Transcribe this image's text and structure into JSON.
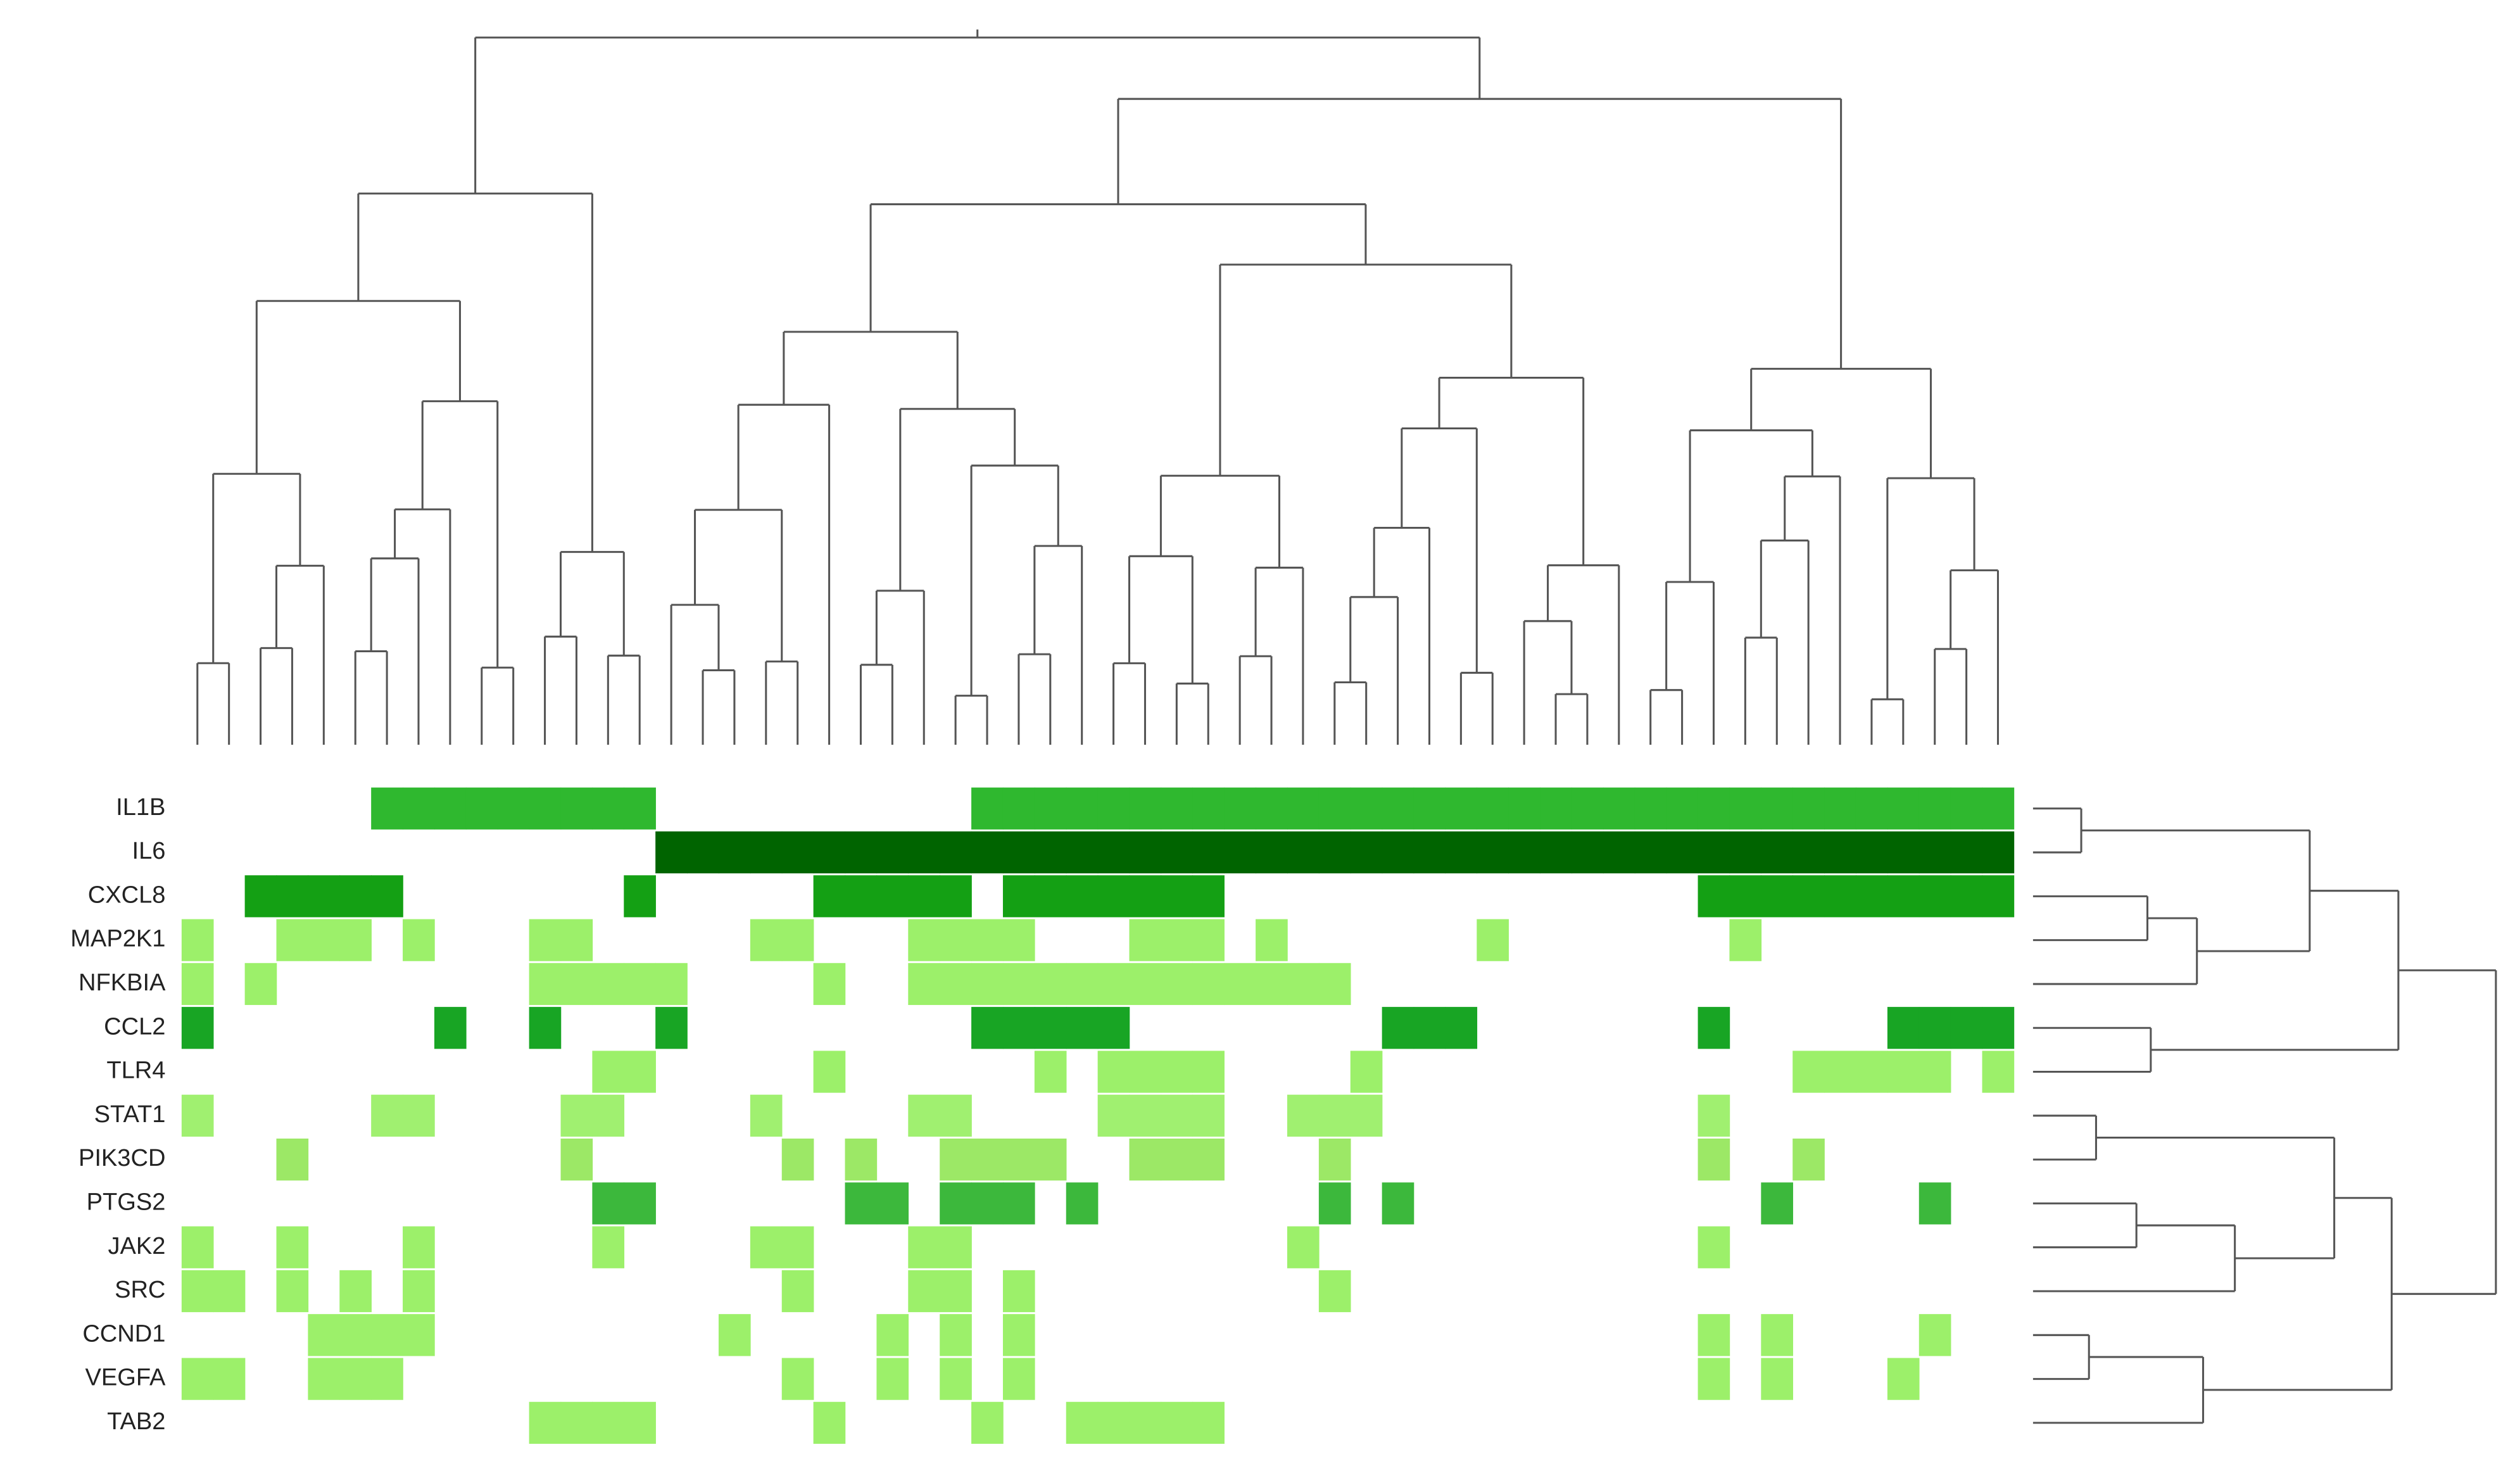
{
  "chart_data": {
    "type": "heatmap",
    "series": [
      {
        "name": "IL1B",
        "color": "#2fb82f",
        "values": [
          0,
          0,
          0,
          0,
          0,
          0,
          1,
          1,
          1,
          1,
          1,
          1,
          1,
          1,
          1,
          0,
          0,
          0,
          0,
          0,
          0,
          0,
          0,
          0,
          0,
          1,
          1,
          1,
          1,
          1,
          1,
          1,
          1,
          1,
          1,
          1,
          1,
          1,
          1,
          1,
          1,
          1,
          1,
          1,
          1,
          1,
          1,
          1,
          1,
          1,
          1,
          1,
          1,
          1,
          1,
          1,
          1,
          1
        ]
      },
      {
        "name": "IL6",
        "color": "#006400",
        "values": [
          0,
          0,
          0,
          0,
          0,
          0,
          0,
          0,
          0,
          0,
          0,
          0,
          0,
          0,
          0,
          1,
          1,
          1,
          1,
          1,
          1,
          1,
          1,
          1,
          1,
          1,
          1,
          1,
          1,
          1,
          1,
          1,
          1,
          1,
          1,
          1,
          1,
          1,
          1,
          1,
          1,
          1,
          1,
          1,
          1,
          1,
          1,
          1,
          1,
          1,
          1,
          1,
          1,
          1,
          1,
          1,
          1,
          1
        ]
      },
      {
        "name": "CXCL8",
        "color": "#14a014",
        "values": [
          0,
          0,
          1,
          1,
          1,
          1,
          1,
          0,
          0,
          0,
          0,
          0,
          0,
          0,
          1,
          0,
          0,
          0,
          0,
          0,
          1,
          1,
          1,
          1,
          1,
          0,
          1,
          1,
          1,
          1,
          1,
          1,
          1,
          0,
          0,
          0,
          0,
          0,
          0,
          0,
          0,
          0,
          0,
          0,
          0,
          0,
          0,
          0,
          1,
          1,
          1,
          1,
          1,
          1,
          1,
          1,
          1,
          1
        ]
      },
      {
        "name": "MAP2K1",
        "color": "#9cf06a",
        "values": [
          1,
          0,
          0,
          1,
          1,
          1,
          0,
          1,
          0,
          0,
          0,
          1,
          1,
          0,
          0,
          0,
          0,
          0,
          1,
          1,
          0,
          0,
          0,
          1,
          1,
          1,
          1,
          0,
          0,
          0,
          1,
          1,
          1,
          0,
          1,
          0,
          0,
          0,
          0,
          0,
          0,
          1,
          0,
          0,
          0,
          0,
          0,
          0,
          0,
          1,
          0,
          0,
          0,
          0,
          0,
          0,
          0,
          0
        ]
      },
      {
        "name": "NFKBIA",
        "color": "#9cf06a",
        "values": [
          1,
          0,
          1,
          0,
          0,
          0,
          0,
          0,
          0,
          0,
          0,
          1,
          1,
          1,
          1,
          1,
          0,
          0,
          0,
          0,
          1,
          0,
          0,
          1,
          1,
          1,
          1,
          1,
          1,
          1,
          1,
          1,
          1,
          1,
          1,
          1,
          1,
          0,
          0,
          0,
          0,
          0,
          0,
          0,
          0,
          0,
          0,
          0,
          0,
          0,
          0,
          0,
          0,
          0,
          0,
          0,
          0,
          0
        ]
      },
      {
        "name": "CCL2",
        "color": "#18a524",
        "values": [
          1,
          0,
          0,
          0,
          0,
          0,
          0,
          0,
          1,
          0,
          0,
          1,
          0,
          0,
          0,
          1,
          0,
          0,
          0,
          0,
          0,
          0,
          0,
          0,
          0,
          1,
          1,
          1,
          1,
          1,
          0,
          0,
          0,
          0,
          0,
          0,
          0,
          0,
          1,
          1,
          1,
          0,
          0,
          0,
          0,
          0,
          0,
          0,
          1,
          0,
          0,
          0,
          0,
          0,
          1,
          1,
          1,
          1
        ]
      },
      {
        "name": "TLR4",
        "color": "#9cf06a",
        "values": [
          0,
          0,
          0,
          0,
          0,
          0,
          0,
          0,
          0,
          0,
          0,
          0,
          0,
          1,
          1,
          0,
          0,
          0,
          0,
          0,
          1,
          0,
          0,
          0,
          0,
          0,
          0,
          1,
          0,
          1,
          1,
          1,
          1,
          0,
          0,
          0,
          0,
          1,
          0,
          0,
          0,
          0,
          0,
          0,
          0,
          0,
          0,
          0,
          0,
          0,
          0,
          1,
          1,
          1,
          1,
          1,
          0,
          1
        ]
      },
      {
        "name": "STAT1",
        "color": "#a0f070",
        "values": [
          1,
          0,
          0,
          0,
          0,
          0,
          1,
          1,
          0,
          0,
          0,
          0,
          1,
          1,
          0,
          0,
          0,
          0,
          1,
          0,
          0,
          0,
          0,
          1,
          1,
          0,
          0,
          0,
          0,
          1,
          1,
          1,
          1,
          0,
          0,
          1,
          1,
          1,
          0,
          0,
          0,
          0,
          0,
          0,
          0,
          0,
          0,
          0,
          1,
          0,
          0,
          0,
          0,
          0,
          0,
          0,
          0,
          0
        ]
      },
      {
        "name": "PIK3CD",
        "color": "#9ce866",
        "values": [
          0,
          0,
          0,
          1,
          0,
          0,
          0,
          0,
          0,
          0,
          0,
          0,
          1,
          0,
          0,
          0,
          0,
          0,
          0,
          1,
          0,
          1,
          0,
          0,
          1,
          1,
          1,
          1,
          0,
          0,
          1,
          1,
          1,
          0,
          0,
          0,
          1,
          0,
          0,
          0,
          0,
          0,
          0,
          0,
          0,
          0,
          0,
          0,
          1,
          0,
          0,
          1,
          0,
          0,
          0,
          0,
          0,
          0
        ]
      },
      {
        "name": "PTGS2",
        "color": "#3cb83c",
        "values": [
          0,
          0,
          0,
          0,
          0,
          0,
          0,
          0,
          0,
          0,
          0,
          0,
          0,
          1,
          1,
          0,
          0,
          0,
          0,
          0,
          0,
          1,
          1,
          0,
          1,
          1,
          1,
          0,
          1,
          0,
          0,
          0,
          0,
          0,
          0,
          0,
          1,
          0,
          1,
          0,
          0,
          0,
          0,
          0,
          0,
          0,
          0,
          0,
          0,
          0,
          1,
          0,
          0,
          0,
          0,
          1,
          0,
          0
        ]
      },
      {
        "name": "JAK2",
        "color": "#9cf06a",
        "values": [
          1,
          0,
          0,
          1,
          0,
          0,
          0,
          1,
          0,
          0,
          0,
          0,
          0,
          1,
          0,
          0,
          0,
          0,
          1,
          1,
          0,
          0,
          0,
          1,
          1,
          0,
          0,
          0,
          0,
          0,
          0,
          0,
          0,
          0,
          0,
          1,
          0,
          0,
          0,
          0,
          0,
          0,
          0,
          0,
          0,
          0,
          0,
          0,
          1,
          0,
          0,
          0,
          0,
          0,
          0,
          0,
          0,
          0
        ]
      },
      {
        "name": "SRC",
        "color": "#9cf06a",
        "values": [
          1,
          1,
          0,
          1,
          0,
          1,
          0,
          1,
          0,
          0,
          0,
          0,
          0,
          0,
          0,
          0,
          0,
          0,
          0,
          1,
          0,
          0,
          0,
          1,
          1,
          0,
          1,
          0,
          0,
          0,
          0,
          0,
          0,
          0,
          0,
          0,
          1,
          0,
          0,
          0,
          0,
          0,
          0,
          0,
          0,
          0,
          0,
          0,
          0,
          0,
          0,
          0,
          0,
          0,
          0,
          0,
          0,
          0
        ]
      },
      {
        "name": "CCND1",
        "color": "#9cf06a",
        "values": [
          0,
          0,
          0,
          0,
          1,
          1,
          1,
          1,
          0,
          0,
          0,
          0,
          0,
          0,
          0,
          0,
          0,
          1,
          0,
          0,
          0,
          0,
          1,
          0,
          1,
          0,
          1,
          0,
          0,
          0,
          0,
          0,
          0,
          0,
          0,
          0,
          0,
          0,
          0,
          0,
          0,
          0,
          0,
          0,
          0,
          0,
          0,
          0,
          1,
          0,
          1,
          0,
          0,
          0,
          0,
          1,
          0,
          0
        ]
      },
      {
        "name": "VEGFA",
        "color": "#9cf06a",
        "values": [
          1,
          1,
          0,
          0,
          1,
          1,
          1,
          0,
          0,
          0,
          0,
          0,
          0,
          0,
          0,
          0,
          0,
          0,
          0,
          1,
          0,
          0,
          1,
          0,
          1,
          0,
          1,
          0,
          0,
          0,
          0,
          0,
          0,
          0,
          0,
          0,
          0,
          0,
          0,
          0,
          0,
          0,
          0,
          0,
          0,
          0,
          0,
          0,
          1,
          0,
          1,
          0,
          0,
          0,
          1,
          0,
          0,
          0
        ]
      },
      {
        "name": "TAB2",
        "color": "#9cf06a",
        "values": [
          0,
          0,
          0,
          0,
          0,
          0,
          0,
          0,
          0,
          0,
          0,
          1,
          1,
          1,
          1,
          0,
          0,
          0,
          0,
          0,
          1,
          0,
          0,
          0,
          0,
          1,
          0,
          0,
          1,
          1,
          1,
          1,
          1,
          0,
          0,
          0,
          0,
          0,
          0,
          0,
          0,
          0,
          0,
          0,
          0,
          0,
          0,
          0,
          0,
          0,
          0,
          0,
          0,
          0,
          0,
          0,
          0,
          0
        ]
      }
    ]
  }
}
